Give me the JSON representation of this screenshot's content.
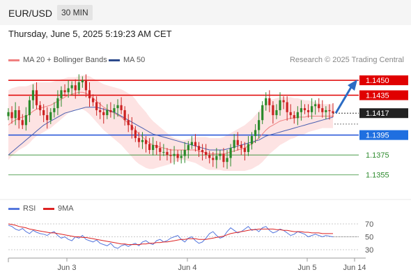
{
  "header": {
    "symbol": "EUR/USD",
    "timeframe": "30 MIN"
  },
  "datetime": "Thursday, June 5, 2025 5:19:23 AM CET",
  "legend": {
    "bollinger": "MA 20 + Bollinger Bands",
    "ma50": "MA 50",
    "rsi": "RSI",
    "rsi_ma": "9MA"
  },
  "credit": "Research © 2025 Trading Central",
  "colors": {
    "resistance": "#e00000",
    "support": "#1f4fd6",
    "target": "#2e8b2e",
    "ma50": "#4a5fb0",
    "ma20": "#f08080",
    "band_fill": "#fde0e0",
    "up": "#2a8a2a",
    "down": "#cc2222",
    "rsi": "#5577dd",
    "rsi_ma": "#dd2222"
  },
  "chart_data": [
    {
      "type": "candlestick",
      "ylim": [
        1.1345,
        1.1462
      ],
      "x_ticks": [
        "Jun 3",
        "Jun 4",
        "Jun 5",
        "Jun 14"
      ],
      "current_price": 1.1417,
      "levels": [
        {
          "value": 1.145,
          "label": "1.1450",
          "kind": "resistance"
        },
        {
          "value": 1.1435,
          "label": "1.1435",
          "kind": "resistance"
        },
        {
          "value": 1.1417,
          "label": "1.1417",
          "kind": "current"
        },
        {
          "value": 1.1395,
          "label": "1.1395",
          "kind": "pivot"
        },
        {
          "value": 1.1375,
          "label": "1.1375",
          "kind": "support"
        },
        {
          "value": 1.1355,
          "label": "1.1355",
          "kind": "support"
        }
      ],
      "close": [
        1.1418,
        1.1412,
        1.142,
        1.141,
        1.1405,
        1.1415,
        1.143,
        1.144,
        1.1425,
        1.142,
        1.1415,
        1.141,
        1.1418,
        1.1422,
        1.1432,
        1.144,
        1.1438,
        1.1442,
        1.1445,
        1.144,
        1.1448,
        1.145,
        1.144,
        1.1432,
        1.1428,
        1.142,
        1.1418,
        1.1415,
        1.142,
        1.1418,
        1.1422,
        1.1425,
        1.142,
        1.141,
        1.1405,
        1.14,
        1.1392,
        1.1388,
        1.139,
        1.1386,
        1.138,
        1.1385,
        1.1382,
        1.1378,
        1.1378,
        1.1375,
        1.1374,
        1.1376,
        1.1372,
        1.1374,
        1.138,
        1.1385,
        1.1388,
        1.1384,
        1.138,
        1.1378,
        1.1375,
        1.1372,
        1.137,
        1.1374,
        1.1376,
        1.1368,
        1.1372,
        1.1382,
        1.139,
        1.1385,
        1.1382,
        1.1378,
        1.1386,
        1.1394,
        1.14,
        1.141,
        1.1425,
        1.1432,
        1.1425,
        1.1415,
        1.142,
        1.143,
        1.1428,
        1.1418,
        1.1415,
        1.1412,
        1.1418,
        1.1422,
        1.142,
        1.1418,
        1.1424,
        1.1426,
        1.1422,
        1.1418,
        1.142,
        1.1419,
        1.1417
      ],
      "ma20": [
        1.1405,
        1.1408,
        1.141,
        1.1412,
        1.1413,
        1.1414,
        1.1416,
        1.1419,
        1.1421,
        1.1422,
        1.1423,
        1.1424,
        1.1425,
        1.1427,
        1.1429,
        1.1431,
        1.1433,
        1.1435,
        1.1436,
        1.1437,
        1.1438,
        1.1438,
        1.1437,
        1.1435,
        1.1432,
        1.1429,
        1.1426,
        1.1423,
        1.1421,
        1.1419,
        1.1417,
        1.1415,
        1.1413,
        1.141,
        1.1407,
        1.1404,
        1.14,
        1.1396,
        1.1393,
        1.139,
        1.1387,
        1.1385,
        1.1384,
        1.1383,
        1.1382,
        1.1381,
        1.138,
        1.138,
        1.138,
        1.138,
        1.138,
        1.138,
        1.138,
        1.138,
        1.1379,
        1.1378,
        1.1377,
        1.1376,
        1.1376,
        1.1376,
        1.1376,
        1.1376,
        1.1377,
        1.1378,
        1.1379,
        1.138,
        1.1381,
        1.1382,
        1.1384,
        1.1386,
        1.1389,
        1.1392,
        1.1396,
        1.14,
        1.1403,
        1.1405,
        1.1407,
        1.1409,
        1.141,
        1.1411,
        1.1412,
        1.1412,
        1.1413,
        1.1413,
        1.1413,
        1.1414,
        1.1414,
        1.1414,
        1.1414,
        1.1414,
        1.1414,
        1.1414,
        1.1414
      ],
      "ma50": [
        1.1375,
        1.1378,
        1.1381,
        1.1384,
        1.1387,
        1.139,
        1.1393,
        1.1396,
        1.1399,
        1.1402,
        1.1405,
        1.1407,
        1.1409,
        1.1411,
        1.1413,
        1.1415,
        1.1417,
        1.1418,
        1.1419,
        1.142,
        1.1421,
        1.1422,
        1.1423,
        1.1423,
        1.1423,
        1.1423,
        1.1422,
        1.1421,
        1.142,
        1.1419,
        1.1418,
        1.1416,
        1.1414,
        1.1412,
        1.141,
        1.1408,
        1.1406,
        1.1404,
        1.1402,
        1.14,
        1.1398,
        1.1396,
        1.1395,
        1.1394,
        1.1393,
        1.1392,
        1.1391,
        1.139,
        1.1389,
        1.1388,
        1.1387,
        1.1386,
        1.1385,
        1.1384,
        1.1383,
        1.1382,
        1.1381,
        1.138,
        1.138,
        1.138,
        1.138,
        1.138,
        1.1381,
        1.1382,
        1.1383,
        1.1384,
        1.1385,
        1.1386,
        1.1387,
        1.1388,
        1.1389,
        1.139,
        1.1392,
        1.1394,
        1.1395,
        1.1396,
        1.1397,
        1.1398,
        1.1399,
        1.14,
        1.1401,
        1.1402,
        1.1403,
        1.1404,
        1.1405,
        1.1406,
        1.1407,
        1.1408,
        1.1409,
        1.141,
        1.1411,
        1.1412,
        1.1413
      ],
      "band_width": [
        0.0035,
        0.0034,
        0.0033,
        0.0032,
        0.0031,
        0.003,
        0.0029,
        0.0028,
        0.0027,
        0.0026,
        0.0025,
        0.0024,
        0.0023,
        0.0022,
        0.0021,
        0.002,
        0.0019,
        0.0018,
        0.0017,
        0.0016,
        0.0016,
        0.0017,
        0.0018,
        0.0019,
        0.002,
        0.0021,
        0.0022,
        0.0023,
        0.0024,
        0.0025,
        0.0026,
        0.0027,
        0.0028,
        0.0029,
        0.003,
        0.0031,
        0.0031,
        0.003,
        0.0029,
        0.0028,
        0.0026,
        0.0024,
        0.0022,
        0.002,
        0.0018,
        0.0016,
        0.0014,
        0.0012,
        0.0011,
        0.001,
        0.001,
        0.0011,
        0.0012,
        0.0013,
        0.0014,
        0.0015,
        0.0016,
        0.0016,
        0.0016,
        0.0016,
        0.0016,
        0.0017,
        0.0018,
        0.0019,
        0.002,
        0.0021,
        0.0022,
        0.0023,
        0.0024,
        0.0025,
        0.0026,
        0.0027,
        0.0028,
        0.0028,
        0.0027,
        0.0026,
        0.0025,
        0.0024,
        0.0023,
        0.0022,
        0.0021,
        0.002,
        0.0019,
        0.0018,
        0.0017,
        0.0016,
        0.0015,
        0.0014,
        0.0013,
        0.0012,
        0.0012,
        0.0012,
        0.0012
      ],
      "forecast_arrow": {
        "from": 1.1417,
        "to": 1.145
      }
    },
    {
      "type": "line",
      "ylim": [
        20,
        80
      ],
      "y_ticks": [
        70,
        50,
        30
      ],
      "series": [
        {
          "name": "RSI",
          "values": [
            68,
            66,
            62,
            60,
            63,
            58,
            55,
            60,
            57,
            55,
            54,
            52,
            56,
            58,
            52,
            48,
            50,
            46,
            44,
            50,
            48,
            52,
            46,
            44,
            42,
            45,
            40,
            38,
            36,
            40,
            34,
            32,
            36,
            38,
            35,
            38,
            40,
            36,
            42,
            44,
            40,
            38,
            44,
            46,
            42,
            44,
            48,
            50,
            52,
            46,
            42,
            48,
            50,
            44,
            40,
            42,
            48,
            55,
            58,
            52,
            48,
            50,
            58,
            64,
            60,
            56,
            58,
            62,
            66,
            60,
            62,
            58,
            64,
            66,
            60,
            56,
            58,
            62,
            60,
            56,
            52,
            54,
            58,
            56,
            54,
            50,
            52,
            54,
            52,
            50,
            52,
            51,
            50
          ]
        },
        {
          "name": "9MA",
          "values": [
            70,
            69,
            68,
            66,
            65,
            64,
            62,
            61,
            60,
            59,
            58,
            57,
            56,
            56,
            55,
            54,
            53,
            52,
            51,
            50,
            50,
            49,
            49,
            48,
            47,
            46,
            45,
            44,
            43,
            42,
            41,
            40,
            39,
            39,
            38,
            38,
            38,
            38,
            39,
            39,
            40,
            40,
            41,
            41,
            42,
            42,
            43,
            44,
            45,
            46,
            46,
            47,
            47,
            47,
            46,
            46,
            46,
            47,
            48,
            49,
            50,
            51,
            53,
            55,
            56,
            57,
            58,
            59,
            60,
            61,
            61,
            62,
            62,
            62,
            62,
            62,
            61,
            61,
            60,
            60,
            59,
            58,
            58,
            58,
            57,
            57,
            56,
            56,
            56,
            55,
            55,
            55,
            55
          ]
        }
      ]
    }
  ]
}
